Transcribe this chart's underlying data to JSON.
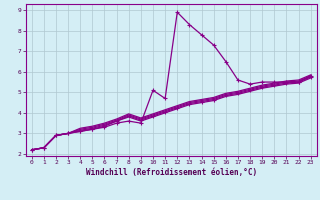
{
  "xlabel": "Windchill (Refroidissement éolien,°C)",
  "background_color": "#d4eef5",
  "grid_color": "#b0c8d0",
  "line_color": "#880088",
  "x": [
    0,
    1,
    2,
    3,
    4,
    5,
    6,
    7,
    8,
    9,
    10,
    11,
    12,
    13,
    14,
    15,
    16,
    17,
    18,
    19,
    20,
    21,
    22,
    23
  ],
  "line1": [
    2.2,
    2.3,
    2.9,
    3.0,
    3.1,
    3.2,
    3.3,
    3.5,
    3.6,
    3.5,
    5.1,
    4.7,
    8.9,
    8.3,
    7.8,
    7.3,
    6.5,
    5.6,
    5.4,
    5.5,
    5.5,
    5.5,
    5.5,
    5.8
  ],
  "line2": [
    2.2,
    2.3,
    2.9,
    3.0,
    3.1,
    3.2,
    3.35,
    3.6,
    3.85,
    3.65,
    3.85,
    4.05,
    4.25,
    4.45,
    4.55,
    4.65,
    4.85,
    4.95,
    5.1,
    5.25,
    5.35,
    5.45,
    5.5,
    5.75
  ],
  "line3": [
    2.2,
    2.3,
    2.9,
    3.0,
    3.15,
    3.25,
    3.4,
    3.6,
    3.8,
    3.6,
    3.8,
    4.0,
    4.2,
    4.4,
    4.5,
    4.6,
    4.8,
    4.9,
    5.05,
    5.2,
    5.3,
    5.4,
    5.45,
    5.7
  ],
  "line4": [
    2.2,
    2.3,
    2.9,
    3.0,
    3.2,
    3.3,
    3.45,
    3.65,
    3.9,
    3.7,
    3.9,
    4.1,
    4.3,
    4.5,
    4.6,
    4.7,
    4.9,
    5.0,
    5.15,
    5.3,
    5.4,
    5.5,
    5.55,
    5.8
  ],
  "line5": [
    2.2,
    2.3,
    2.9,
    3.0,
    3.25,
    3.35,
    3.5,
    3.7,
    3.95,
    3.75,
    3.95,
    4.15,
    4.35,
    4.55,
    4.65,
    4.75,
    4.95,
    5.05,
    5.2,
    5.35,
    5.45,
    5.55,
    5.6,
    5.85
  ],
  "ylim": [
    2,
    9
  ],
  "xlim": [
    -0.5,
    23.5
  ],
  "yticks": [
    2,
    3,
    4,
    5,
    6,
    7,
    8,
    9
  ],
  "xticks": [
    0,
    1,
    2,
    3,
    4,
    5,
    6,
    7,
    8,
    9,
    10,
    11,
    12,
    13,
    14,
    15,
    16,
    17,
    18,
    19,
    20,
    21,
    22,
    23
  ]
}
